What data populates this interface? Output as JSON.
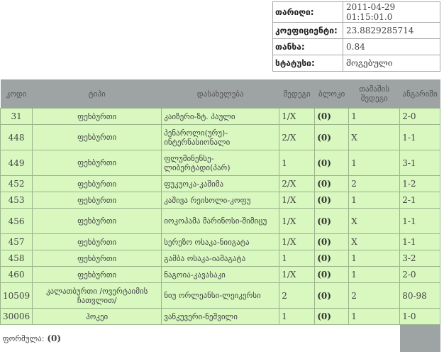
{
  "info": [
    {
      "label": "თარიღი:",
      "value": "2011-04-29 01:15:01.0"
    },
    {
      "label": "კოეფიციენტი:",
      "value": "23.8829285714"
    },
    {
      "label": "თანხა:",
      "value": "0.84"
    },
    {
      "label": "სტატუსი:",
      "value": "მოგებული"
    }
  ],
  "table": {
    "headers": [
      "კოდი",
      "ტიპი",
      "დასახელება",
      "შედეგი",
      "ბლოკი",
      "თამაშის შედეგი",
      "ანგარიში"
    ],
    "rows": [
      {
        "code": "31",
        "type": "ფეხბურთი",
        "name": "კაიზერი-ზტ. პაული",
        "result": "1/X",
        "block": "(0)",
        "game": "1",
        "score": "2-0",
        "tall": false
      },
      {
        "code": "448",
        "type": "ფეხბურთი",
        "name": "პენაროლი(ურუ)-ინტერნასიონალი",
        "result": "2/X",
        "block": "(0)",
        "game": "X",
        "score": "1-1",
        "tall": true
      },
      {
        "code": "449",
        "type": "ფეხბურთი",
        "name": "ფლუმინენსე-ლიბერტადი(პარ)",
        "result": "1",
        "block": "(0)",
        "game": "1",
        "score": "3-1",
        "tall": true
      },
      {
        "code": "452",
        "type": "ფეხბურთი",
        "name": "ფუკუოკა-კაშიმა",
        "result": "2/X",
        "block": "(0)",
        "game": "2",
        "score": "1-2",
        "tall": false
      },
      {
        "code": "453",
        "type": "ფეხბურთი",
        "name": "კაშივა რეისოლი-კოფუ",
        "result": "1/X",
        "block": "(0)",
        "game": "1",
        "score": "2-1",
        "tall": false
      },
      {
        "code": "456",
        "type": "ფეხბურთი",
        "name": "იოკოჰამა მარინოსი-შიმიცუ",
        "result": "1/X",
        "block": "(0)",
        "game": "X",
        "score": "1-1",
        "tall": true
      },
      {
        "code": "457",
        "type": "ფეხბურთი",
        "name": "სერეზო ოსაკა-ნიიგატა",
        "result": "1/X",
        "block": "(0)",
        "game": "X",
        "score": "1-1",
        "tall": false
      },
      {
        "code": "458",
        "type": "ფეხბურთი",
        "name": "გამბა ოსაკა-იამაგატა",
        "result": "1",
        "block": "(0)",
        "game": "1",
        "score": "3-2",
        "tall": false
      },
      {
        "code": "460",
        "type": "ფეხბურთი",
        "name": "ნაგოია-კავასაკი",
        "result": "1/X",
        "block": "(0)",
        "game": "1",
        "score": "2-0",
        "tall": false
      },
      {
        "code": "10509",
        "type": "კალათბურთი /ოვერტაიმის ჩათვლით/",
        "name": "ნიუ ორლეანსი-ლეიკერსი",
        "result": "2",
        "block": "(0)",
        "game": "2",
        "score": "80-98",
        "tall": true
      },
      {
        "code": "30006",
        "type": "ჰოკეი",
        "name": "ვანკუვერი-ნეშვილი",
        "result": "1",
        "block": "(0)",
        "game": "1",
        "score": "1-0",
        "tall": false
      }
    ]
  },
  "footer": {
    "formula_label": "ფორმულა:",
    "formula_value": "(0)"
  }
}
